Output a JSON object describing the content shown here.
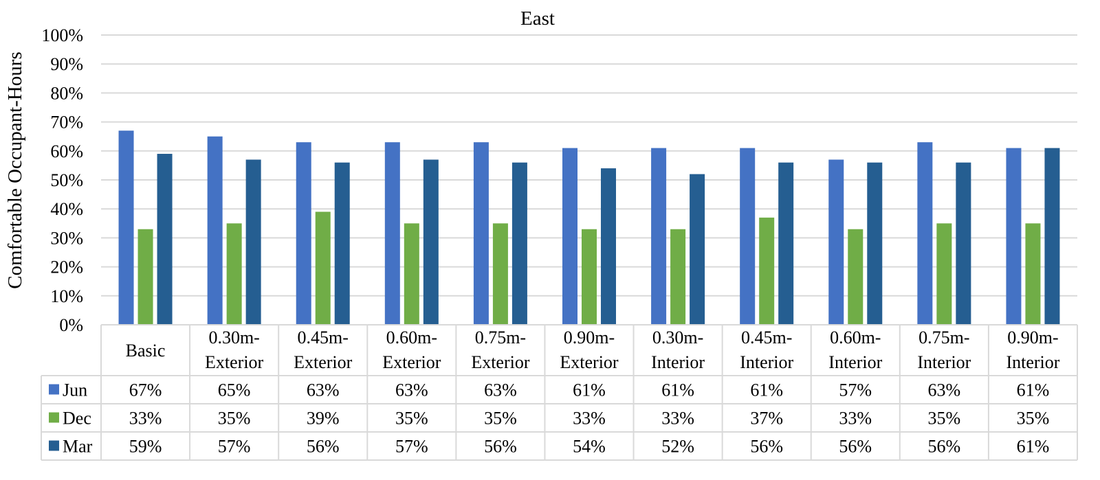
{
  "chart_data": {
    "type": "bar",
    "title": "East",
    "xlabel": "",
    "ylabel": "Comfortable Occupant-Hours",
    "ylim": [
      0,
      1
    ],
    "yticks": [
      "0%",
      "10%",
      "20%",
      "30%",
      "40%",
      "50%",
      "60%",
      "70%",
      "80%",
      "90%",
      "100%"
    ],
    "grid": true,
    "legend": "data-table",
    "categories": [
      [
        "Basic"
      ],
      [
        "0.30m-",
        "Exterior"
      ],
      [
        "0.45m-",
        "Exterior"
      ],
      [
        "0.60m-",
        "Exterior"
      ],
      [
        "0.75m-",
        "Exterior"
      ],
      [
        "0.90m-",
        "Exterior"
      ],
      [
        "0.30m-",
        "Interior"
      ],
      [
        "0.45m-",
        "Interior"
      ],
      [
        "0.60m-",
        "Interior"
      ],
      [
        "0.75m-",
        "Interior"
      ],
      [
        "0.90m-",
        "Interior"
      ]
    ],
    "series": [
      {
        "name": "Jun",
        "color": "#4472C4",
        "values": [
          0.67,
          0.65,
          0.63,
          0.63,
          0.63,
          0.61,
          0.61,
          0.61,
          0.57,
          0.63,
          0.61
        ],
        "labels": [
          "67%",
          "65%",
          "63%",
          "63%",
          "63%",
          "61%",
          "61%",
          "61%",
          "57%",
          "63%",
          "61%"
        ]
      },
      {
        "name": "Dec",
        "color": "#70AD47",
        "values": [
          0.33,
          0.35,
          0.39,
          0.35,
          0.35,
          0.33,
          0.33,
          0.37,
          0.33,
          0.35,
          0.35
        ],
        "labels": [
          "33%",
          "35%",
          "39%",
          "35%",
          "35%",
          "33%",
          "33%",
          "37%",
          "33%",
          "35%",
          "35%"
        ]
      },
      {
        "name": "Mar",
        "color": "#255E91",
        "values": [
          0.59,
          0.57,
          0.56,
          0.57,
          0.56,
          0.54,
          0.52,
          0.56,
          0.56,
          0.56,
          0.61
        ],
        "labels": [
          "59%",
          "57%",
          "56%",
          "57%",
          "56%",
          "54%",
          "52%",
          "56%",
          "56%",
          "56%",
          "61%"
        ]
      }
    ]
  }
}
